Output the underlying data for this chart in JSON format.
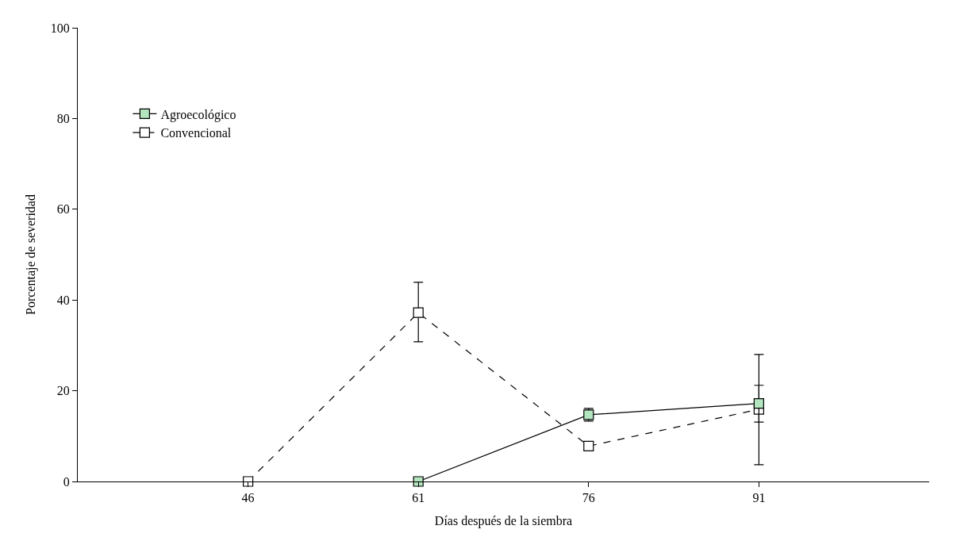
{
  "chart_data": {
    "type": "line",
    "xlabel": "Días después de la siembra",
    "ylabel": "Porcentaje de severidad",
    "x": [
      46,
      61,
      76,
      91
    ],
    "xlim": [
      31,
      106
    ],
    "xticks": [
      46,
      61,
      76,
      91
    ],
    "ylim": [
      0,
      100
    ],
    "yticks": [
      0,
      20,
      40,
      60,
      80,
      100
    ],
    "legend": "top left",
    "marker": "square",
    "series": [
      {
        "name": "Agroecológico",
        "color": "#b3e6bf",
        "line_style": "solid",
        "values": [
          null,
          0,
          14.7,
          17.2
        ],
        "errors": [
          null,
          null,
          [
            13.3,
            16.1
          ],
          [
            13.1,
            21.2
          ]
        ]
      },
      {
        "name": "Convencional",
        "color": "#ffffff",
        "line_style": "dashed",
        "values": [
          0,
          37.2,
          7.8,
          15.9
        ],
        "errors": [
          null,
          [
            30.8,
            43.9
          ],
          null,
          [
            3.7,
            28.0
          ]
        ]
      }
    ]
  }
}
